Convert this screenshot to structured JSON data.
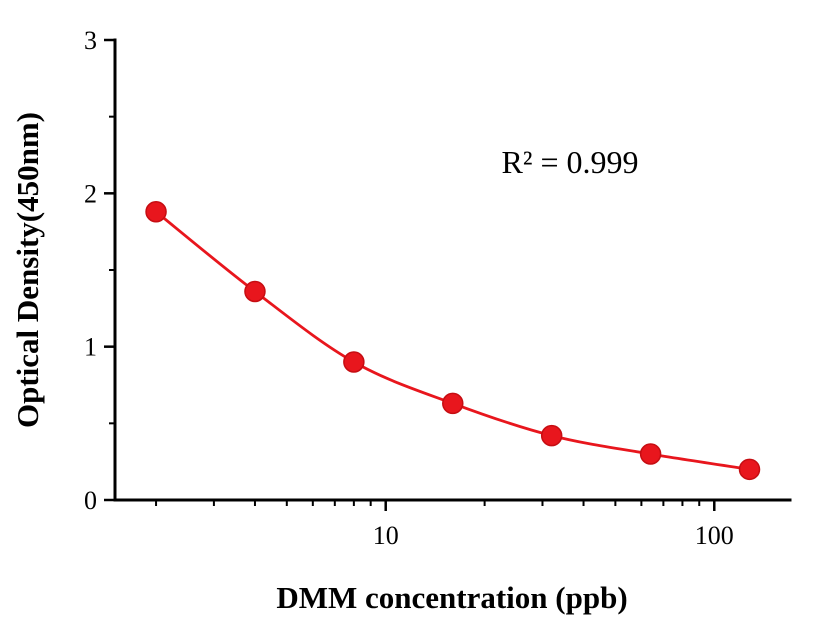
{
  "chart_data": {
    "type": "scatter",
    "title": "",
    "xlabel": "DMM concentration (ppb)",
    "ylabel": "Optical Density(450nm)",
    "x_scale": "log",
    "x": [
      2,
      4,
      8,
      16,
      32,
      64,
      128
    ],
    "y": [
      1.88,
      1.36,
      0.9,
      0.63,
      0.42,
      0.3,
      0.2
    ],
    "xlim": [
      1.5,
      170
    ],
    "ylim": [
      0,
      3
    ],
    "y_major_ticks": [
      0,
      1,
      2,
      3
    ],
    "y_minor_ticks": [
      0.5,
      1.5,
      2.5
    ],
    "x_major_ticks": [
      10,
      100
    ],
    "annotation": "R² = 0.999",
    "legend": null,
    "grid": false,
    "colors": {
      "series": "#e8161d",
      "series_edge": "#c60d12",
      "axis": "#000000"
    }
  }
}
